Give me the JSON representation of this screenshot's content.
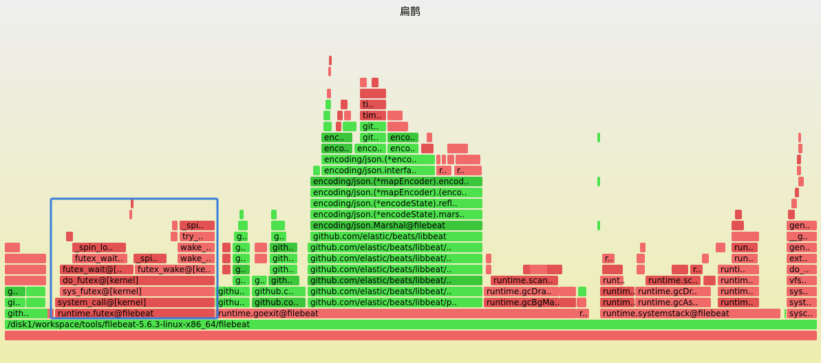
{
  "title": "扁鹊",
  "frames": [
    "/disk1/workspace/tools/filebeat-5.6.3-linux-x86_64/filebeat",
    "gith..",
    "runtime.futex@filebeat",
    "runtime.goexit@filebeat",
    "r..",
    "runtime.systemstack@filebeat",
    "sysc..",
    "gi..",
    "system_call@[kernel]",
    "githu..",
    "github.co..",
    "github.com/elastic/beats/libbeat/p..",
    "runtime.gcBgMa..",
    "runtim..",
    "runtime.gcAs..",
    "runtim..",
    "syst..",
    "g..",
    "sys_futex@[kernel]",
    "githu..",
    "github.c..",
    "github.com/elastic/beats/libbeat/..",
    "runtime.gcDra..",
    "runtim..",
    "runtime.gcDr..",
    "runtim..",
    "sys..",
    "do_futex@[kernel]",
    "g..",
    "g..",
    "gith..",
    "github.com/elastic/beats/libbeat/..",
    "runtime.scan..",
    "runt..",
    "runtime.sc..",
    "runtim..",
    "vfs..",
    "futex_wait@[..",
    "futex_wake@[ke..",
    "g..",
    "gith..",
    "github.com/elastic/beats/libbeat/..",
    "r..",
    "runti..",
    "do_..",
    "futex_wait..",
    "_spi..",
    "wake_..",
    "g..",
    "gith..",
    "github.com/elastic/beats/libbeat/..",
    "r..",
    "run..",
    "ext..",
    "_spin_lo..",
    "wake_..",
    "g..",
    "gith..",
    "github.com/elastic/beats/libbeat/..",
    "run..",
    "gen..",
    "try_..",
    "g..",
    "g..",
    "github.com/elastic/beats/libbeat",
    "__g..",
    "_spi..",
    "encoding/json.Marshal@filebeat",
    "gen..",
    "encoding/json.(*encodeState).mars..",
    "encoding/json.(*encodeState).refl..",
    "encoding/json.(*mapEncoder).(enco..",
    "encoding/json.(*mapEncoder).encod..",
    "encoding/json.interfa..",
    "r..",
    "r..",
    "encoding/json.(*enco..",
    "enco..",
    "enco..",
    "enco..",
    "enc..",
    "git..",
    "enco..",
    "git..",
    "tim..",
    "ti.."
  ]
}
